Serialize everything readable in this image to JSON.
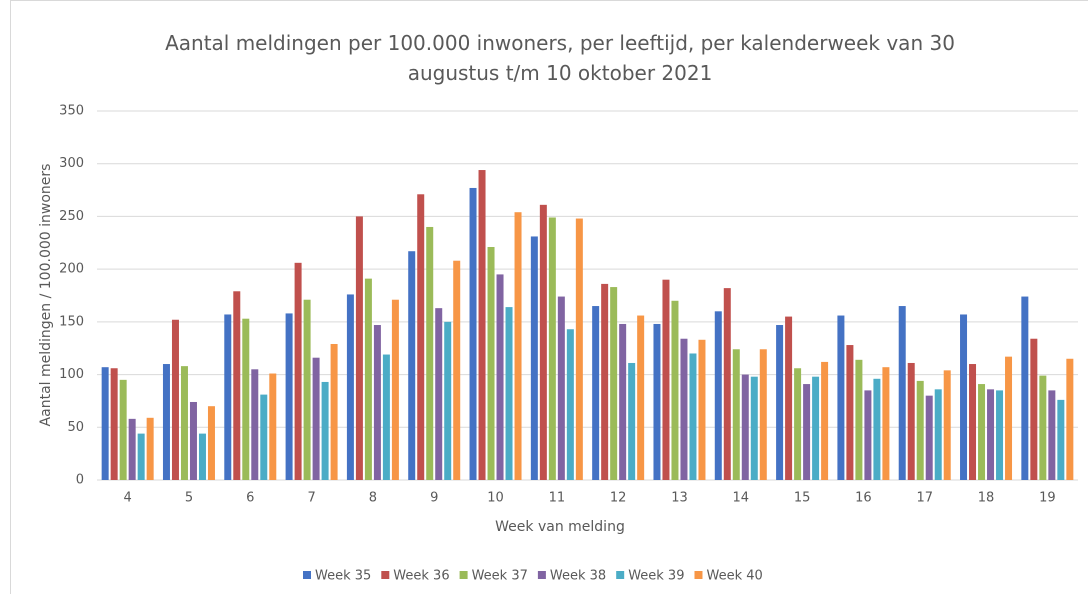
{
  "chart_data": {
    "type": "bar",
    "title": "Aantal meldingen per 100.000 inwoners, per leeftijd, per kalenderweek van 30 augustus t/m 10 oktober 2021",
    "xlabel": "Week van melding",
    "ylabel": "Aantal meldingen / 100.000 inwoners",
    "categories": [
      "4",
      "5",
      "6",
      "7",
      "8",
      "9",
      "10",
      "11",
      "12",
      "13",
      "14",
      "15",
      "16",
      "17",
      "18",
      "19"
    ],
    "series": [
      {
        "name": "Week 35",
        "color": "#4472c4",
        "values": [
          107,
          110,
          157,
          158,
          176,
          217,
          277,
          231,
          165,
          148,
          160,
          147,
          156,
          165,
          157,
          174
        ]
      },
      {
        "name": "Week 36",
        "color": "#c0504d",
        "values": [
          106,
          152,
          179,
          206,
          250,
          271,
          294,
          261,
          186,
          190,
          182,
          155,
          128,
          111,
          110,
          134
        ]
      },
      {
        "name": "Week 37",
        "color": "#9bbb59",
        "values": [
          95,
          108,
          153,
          171,
          191,
          240,
          221,
          249,
          183,
          170,
          124,
          106,
          114,
          94,
          91,
          99
        ]
      },
      {
        "name": "Week 38",
        "color": "#8064a2",
        "values": [
          58,
          74,
          105,
          116,
          147,
          163,
          195,
          174,
          148,
          134,
          100,
          91,
          85,
          80,
          86,
          85
        ]
      },
      {
        "name": "Week 39",
        "color": "#4bacc6",
        "values": [
          44,
          44,
          81,
          93,
          119,
          150,
          164,
          143,
          111,
          120,
          98,
          98,
          96,
          86,
          85,
          76
        ]
      },
      {
        "name": "Week 40",
        "color": "#f79646",
        "values": [
          59,
          70,
          101,
          129,
          171,
          208,
          254,
          248,
          156,
          133,
          124,
          112,
          107,
          104,
          117,
          115
        ]
      }
    ],
    "ylim": [
      0,
      350
    ],
    "yticks": [
      0,
      50,
      100,
      150,
      200,
      250,
      300,
      350
    ],
    "grid": true,
    "legend": "bottom"
  }
}
